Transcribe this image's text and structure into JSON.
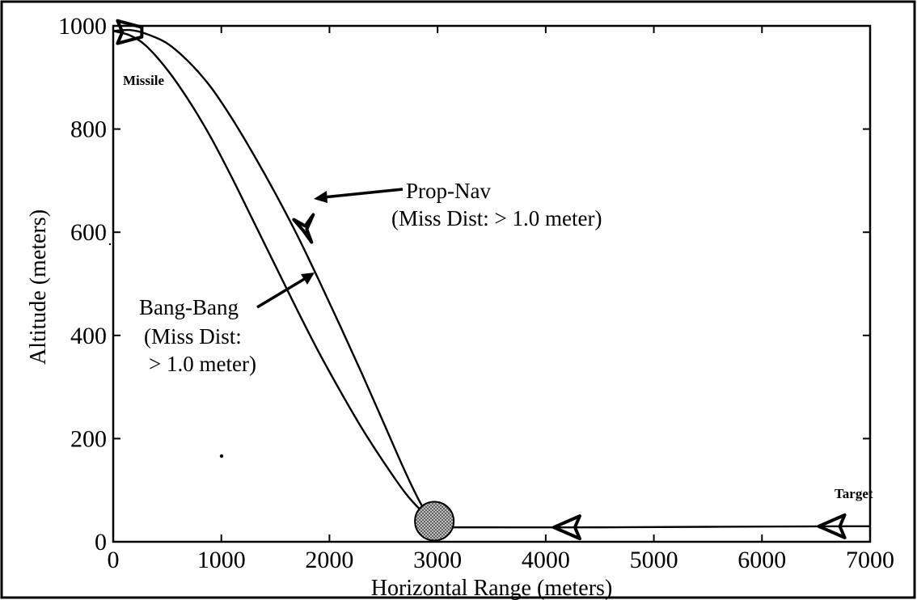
{
  "chart_data": {
    "type": "line",
    "title": "",
    "xlabel": "Horizontal Range (meters)",
    "ylabel": "Altitude (meters)",
    "xlim": [
      0,
      7000
    ],
    "ylim": [
      0,
      1000
    ],
    "x_ticks": [
      "0",
      "1000",
      "2000",
      "3000",
      "4000",
      "5000",
      "6000",
      "7000"
    ],
    "y_ticks": [
      "0",
      "200",
      "400",
      "600",
      "800",
      "1000"
    ],
    "grid": false,
    "series": [
      {
        "name": "Prop-Nav",
        "x": [
          0,
          150,
          300,
          500,
          700,
          900,
          1100,
          1300,
          1500,
          1700,
          1900,
          2100,
          2300,
          2500,
          2700,
          2850,
          2970
        ],
        "y": [
          990,
          992,
          985,
          966,
          930,
          882,
          820,
          750,
          675,
          595,
          508,
          418,
          326,
          231,
          136,
          72,
          40
        ]
      },
      {
        "name": "Bang-Bang",
        "x": [
          0,
          150,
          300,
          500,
          700,
          900,
          1100,
          1300,
          1500,
          1700,
          1900,
          2100,
          2300,
          2500,
          2700,
          2850,
          2970
        ],
        "y": [
          990,
          982,
          962,
          915,
          855,
          785,
          705,
          620,
          535,
          450,
          368,
          292,
          220,
          155,
          95,
          60,
          40
        ]
      },
      {
        "name": "Target",
        "x": [
          2970,
          3500,
          4500,
          5500,
          6800,
          7000
        ],
        "y": [
          28,
          28,
          28,
          29,
          30,
          30
        ]
      }
    ],
    "annotations": {
      "missile": "Missile",
      "target": "Target",
      "propnav_label": "Prop-Nav",
      "propnav_miss": "(Miss Dist: > 1.0 meter)",
      "bangbang_label": "Bang-Bang",
      "bangbang_miss_1": "(Miss Dist:",
      "bangbang_miss_2": "> 1.0 meter)"
    },
    "intercept_point": {
      "x": 2970,
      "y": 40
    },
    "missile_glyphs": [
      {
        "x": 40,
        "y": 988
      },
      {
        "x": 1760,
        "y": 612
      }
    ],
    "target_glyphs": [
      {
        "x": 4300,
        "y": 28
      },
      {
        "x": 6750,
        "y": 30
      }
    ]
  }
}
